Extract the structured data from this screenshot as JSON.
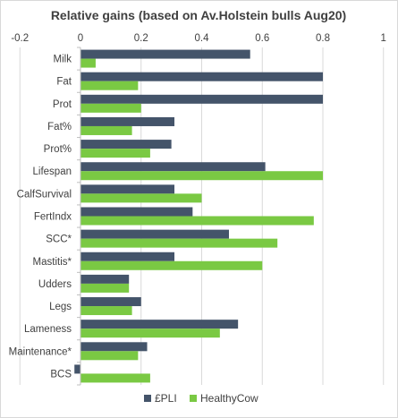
{
  "chart_data": {
    "type": "bar",
    "orientation": "horizontal",
    "title": "Relative gains (based on Av.Holstein bulls Aug20)",
    "xlabel": "",
    "ylabel": "",
    "xlim": [
      -0.2,
      1
    ],
    "x_ticks": [
      -0.2,
      0,
      0.2,
      0.4,
      0.6,
      0.8,
      1
    ],
    "x_tick_labels": [
      "-0.2",
      "0",
      "0.2",
      "0.4",
      "0.6",
      "0.8",
      "1"
    ],
    "axis_position": "top",
    "grid": true,
    "legend_position": "bottom",
    "categories": [
      "Milk",
      "Fat",
      "Prot",
      "Fat%",
      "Prot%",
      "Lifespan",
      "CalfSurvival",
      "FertIndx",
      "SCC*",
      "Mastitis*",
      "Udders",
      "Legs",
      "Lameness",
      "Maintenance*",
      "BCS"
    ],
    "series": [
      {
        "name": "£PLI",
        "color": "#44546a",
        "values": [
          0.56,
          0.8,
          0.8,
          0.31,
          0.3,
          0.61,
          0.31,
          0.37,
          0.49,
          0.31,
          0.16,
          0.2,
          0.52,
          0.22,
          -0.02
        ]
      },
      {
        "name": "HealthyCow",
        "color": "#7ac943",
        "values": [
          0.05,
          0.19,
          0.2,
          0.17,
          0.23,
          0.8,
          0.4,
          0.77,
          0.65,
          0.6,
          0.16,
          0.17,
          0.46,
          0.19,
          0.23
        ]
      }
    ]
  }
}
